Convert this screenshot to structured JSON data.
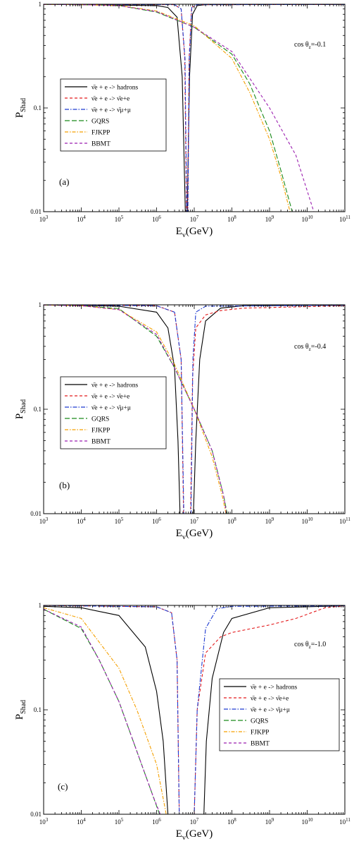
{
  "chart_data": [
    {
      "type": "line",
      "panel_label": "(a)",
      "annotation": "cos θz=-0.1",
      "xlabel": "Eν(GeV)",
      "ylabel": "PShad",
      "x_scale": "log",
      "y_scale": "log",
      "xlim": [
        1000,
        100000000000
      ],
      "ylim": [
        0.01,
        1
      ],
      "x_tick_labels": [
        "10^3",
        "10^4",
        "10^5",
        "10^6",
        "10^7",
        "10^8",
        "10^9",
        "10^10",
        "10^11"
      ],
      "y_tick_labels": [
        "0.01",
        "0.1",
        "1"
      ],
      "legend_position": "center-left",
      "series": [
        {
          "name": "ν̄e + e -> hadrons",
          "color": "#000000",
          "dash": "solid",
          "points": [
            [
              1000,
              0.998
            ],
            [
              1000000,
              0.97
            ],
            [
              2000000,
              0.93
            ],
            [
              3500000,
              0.75
            ],
            [
              4800000,
              0.2
            ],
            [
              5800000,
              0.01
            ],
            [
              6500000,
              0.01
            ],
            [
              7500000,
              0.2
            ],
            [
              9000000,
              0.8
            ],
            [
              12000000,
              0.97
            ],
            [
              20000000,
              0.99
            ],
            [
              100000000000,
              0.995
            ]
          ]
        },
        {
          "name": "ν̄e + e -> ν̄e+e",
          "color": "#e41a1c",
          "dash": "4,3",
          "points": [
            [
              1000,
              0.998
            ],
            [
              3000000,
              0.99
            ],
            [
              4500000,
              0.9
            ],
            [
              5600000,
              0.3
            ],
            [
              6200000,
              0.01
            ],
            [
              6700000,
              0.01
            ],
            [
              7300000,
              0.3
            ],
            [
              8500000,
              0.93
            ],
            [
              12000000,
              0.99
            ],
            [
              100000000000,
              0.995
            ]
          ]
        },
        {
          "name": "ν̄e + e -> ν̄μ+μ",
          "color": "#1f3bd1",
          "dash": "6,2,1.5,2",
          "points": [
            [
              1000,
              0.998
            ],
            [
              3000000,
              0.99
            ],
            [
              4500000,
              0.9
            ],
            [
              5700000,
              0.3
            ],
            [
              6300000,
              0.01
            ],
            [
              6800000,
              0.01
            ],
            [
              7400000,
              0.3
            ],
            [
              8600000,
              0.93
            ],
            [
              12000000,
              0.99
            ],
            [
              100000000000,
              0.995
            ]
          ]
        },
        {
          "name": "GQRS",
          "color": "#1a8a1a",
          "dash": "7,3",
          "points": [
            [
              1000,
              0.995
            ],
            [
              10000,
              0.99
            ],
            [
              100000,
              0.97
            ],
            [
              1000000,
              0.84
            ],
            [
              10000000,
              0.6
            ],
            [
              100000000,
              0.33
            ],
            [
              300000000,
              0.17
            ],
            [
              1000000000,
              0.06
            ],
            [
              2000000000,
              0.025
            ],
            [
              4000000000,
              0.01
            ]
          ]
        },
        {
          "name": "FJKPP",
          "color": "#f5a000",
          "dash": "5,2,1.5,2",
          "points": [
            [
              1000,
              0.995
            ],
            [
              10000,
              0.99
            ],
            [
              100000,
              0.97
            ],
            [
              1000000,
              0.86
            ],
            [
              10000000,
              0.62
            ],
            [
              100000000,
              0.3
            ],
            [
              300000000,
              0.14
            ],
            [
              1000000000,
              0.05
            ],
            [
              2000000000,
              0.022
            ],
            [
              3500000000,
              0.01
            ]
          ]
        },
        {
          "name": "BBMT",
          "color": "#9b1fb0",
          "dash": "4,3",
          "points": [
            [
              1000,
              0.995
            ],
            [
              10000,
              0.99
            ],
            [
              100000,
              0.97
            ],
            [
              1000000,
              0.85
            ],
            [
              10000000,
              0.6
            ],
            [
              100000000,
              0.35
            ],
            [
              1000000000,
              0.1
            ],
            [
              5000000000,
              0.035
            ],
            [
              15000000000,
              0.01
            ]
          ]
        }
      ]
    },
    {
      "type": "line",
      "panel_label": "(b)",
      "annotation": "cos θz=-0.4",
      "xlabel": "Eν(GeV)",
      "ylabel": "PShad",
      "x_scale": "log",
      "y_scale": "log",
      "xlim": [
        1000,
        100000000000
      ],
      "ylim": [
        0.01,
        1
      ],
      "x_tick_labels": [
        "10^3",
        "10^4",
        "10^5",
        "10^6",
        "10^7",
        "10^8",
        "10^9",
        "10^10",
        "10^11"
      ],
      "y_tick_labels": [
        "0.01",
        "0.1",
        "1"
      ],
      "legend_position": "lower-left",
      "series": [
        {
          "name": "ν̄e + e -> hadrons",
          "color": "#000000",
          "dash": "solid",
          "points": [
            [
              1000,
              0.998
            ],
            [
              100000,
              0.97
            ],
            [
              1000000,
              0.85
            ],
            [
              2000000,
              0.6
            ],
            [
              3000000,
              0.25
            ],
            [
              3700000,
              0.05
            ],
            [
              4200000,
              0.01
            ],
            [
              9500000,
              0.01
            ],
            [
              11000000,
              0.05
            ],
            [
              14000000,
              0.3
            ],
            [
              20000000,
              0.7
            ],
            [
              50000000,
              0.93
            ],
            [
              200000000,
              0.98
            ],
            [
              100000000000,
              0.99
            ]
          ]
        },
        {
          "name": "ν̄e + e -> ν̄e+e",
          "color": "#e41a1c",
          "dash": "4,3",
          "points": [
            [
              1000,
              0.998
            ],
            [
              1000000,
              0.98
            ],
            [
              3000000,
              0.85
            ],
            [
              4500000,
              0.3
            ],
            [
              5200000,
              0.01
            ],
            [
              8000000,
              0.01
            ],
            [
              9000000,
              0.2
            ],
            [
              11000000,
              0.6
            ],
            [
              20000000,
              0.8
            ],
            [
              50000000,
              0.88
            ],
            [
              200000000,
              0.93
            ],
            [
              100000000000,
              0.98
            ]
          ]
        },
        {
          "name": "ν̄e + e -> ν̄μ+μ",
          "color": "#1f3bd1",
          "dash": "6,2,1.5,2",
          "points": [
            [
              1000,
              0.998
            ],
            [
              1000000,
              0.98
            ],
            [
              3000000,
              0.85
            ],
            [
              4500000,
              0.3
            ],
            [
              5300000,
              0.01
            ],
            [
              8200000,
              0.01
            ],
            [
              9200000,
              0.3
            ],
            [
              11000000,
              0.85
            ],
            [
              20000000,
              0.97
            ],
            [
              100000000000,
              0.99
            ]
          ]
        },
        {
          "name": "GQRS",
          "color": "#1a8a1a",
          "dash": "7,3",
          "points": [
            [
              1000,
              0.995
            ],
            [
              10000,
              0.98
            ],
            [
              100000,
              0.92
            ],
            [
              1000000,
              0.5
            ],
            [
              3000000,
              0.25
            ],
            [
              10000000,
              0.1
            ],
            [
              30000000,
              0.04
            ],
            [
              60000000,
              0.015
            ],
            [
              75000000,
              0.01
            ]
          ]
        },
        {
          "name": "FJKPP",
          "color": "#f5a000",
          "dash": "5,2,1.5,2",
          "points": [
            [
              1000,
              0.995
            ],
            [
              10000,
              0.98
            ],
            [
              100000,
              0.9
            ],
            [
              1000000,
              0.55
            ],
            [
              3000000,
              0.27
            ],
            [
              10000000,
              0.1
            ],
            [
              30000000,
              0.035
            ],
            [
              55000000,
              0.015
            ],
            [
              70000000,
              0.01
            ]
          ]
        },
        {
          "name": "BBMT",
          "color": "#9b1fb0",
          "dash": "4,3",
          "points": [
            [
              1000,
              0.995
            ],
            [
              10000,
              0.98
            ],
            [
              100000,
              0.9
            ],
            [
              1000000,
              0.52
            ],
            [
              3000000,
              0.25
            ],
            [
              10000000,
              0.1
            ],
            [
              30000000,
              0.04
            ],
            [
              60000000,
              0.015
            ],
            [
              72000000,
              0.01
            ]
          ]
        }
      ]
    },
    {
      "type": "line",
      "panel_label": "(c)",
      "annotation": "cos θz=-1.0",
      "xlabel": "Eν(GeV)",
      "ylabel": "PShad",
      "x_scale": "log",
      "y_scale": "log",
      "xlim": [
        1000,
        100000000000
      ],
      "ylim": [
        0.01,
        1
      ],
      "x_tick_labels": [
        "10^3",
        "10^4",
        "10^5",
        "10^6",
        "10^7",
        "10^8",
        "10^9",
        "10^10",
        "10^11"
      ],
      "y_tick_labels": [
        "0.01",
        "0.1",
        "1"
      ],
      "legend_position": "center-right",
      "series": [
        {
          "name": "ν̄e + e -> hadrons",
          "color": "#000000",
          "dash": "solid",
          "points": [
            [
              1000,
              0.98
            ],
            [
              10000,
              0.95
            ],
            [
              100000,
              0.8
            ],
            [
              500000,
              0.4
            ],
            [
              1000000,
              0.15
            ],
            [
              1500000,
              0.05
            ],
            [
              2000000,
              0.01
            ],
            [
              18000000,
              0.01
            ],
            [
              21000000,
              0.05
            ],
            [
              30000000,
              0.2
            ],
            [
              60000000,
              0.55
            ],
            [
              100000000,
              0.75
            ],
            [
              1000000000,
              0.95
            ],
            [
              100000000000,
              0.99
            ]
          ]
        },
        {
          "name": "ν̄e + e -> ν̄e+e",
          "color": "#e41a1c",
          "dash": "4,3",
          "points": [
            [
              1000,
              0.998
            ],
            [
              1000000,
              0.97
            ],
            [
              2500000,
              0.85
            ],
            [
              3500000,
              0.3
            ],
            [
              4000000,
              0.01
            ],
            [
              10000000,
              0.01
            ],
            [
              12000000,
              0.1
            ],
            [
              20000000,
              0.35
            ],
            [
              50000000,
              0.5
            ],
            [
              100000000,
              0.55
            ],
            [
              1000000000,
              0.65
            ],
            [
              5000000000,
              0.75
            ],
            [
              30000000000,
              0.95
            ],
            [
              100000000000,
              0.99
            ]
          ]
        },
        {
          "name": "ν̄e + e -> ν̄μ+μ",
          "color": "#1f3bd1",
          "dash": "6,2,1.5,2",
          "points": [
            [
              1000,
              0.998
            ],
            [
              1000000,
              0.97
            ],
            [
              2500000,
              0.85
            ],
            [
              3500000,
              0.3
            ],
            [
              4000000,
              0.01
            ],
            [
              10000000,
              0.01
            ],
            [
              12000000,
              0.1
            ],
            [
              20000000,
              0.6
            ],
            [
              40000000,
              0.93
            ],
            [
              100000000,
              0.98
            ],
            [
              100000000000,
              0.99
            ]
          ]
        },
        {
          "name": "GQRS",
          "color": "#1a8a1a",
          "dash": "7,3",
          "points": [
            [
              1000,
              0.92
            ],
            [
              10000,
              0.6
            ],
            [
              30000,
              0.3
            ],
            [
              100000,
              0.12
            ],
            [
              300000,
              0.04
            ],
            [
              800000,
              0.015
            ],
            [
              1200000,
              0.01
            ]
          ]
        },
        {
          "name": "FJKPP",
          "color": "#f5a000",
          "dash": "5,2,1.5,2",
          "points": [
            [
              1000,
              0.95
            ],
            [
              10000,
              0.75
            ],
            [
              100000,
              0.25
            ],
            [
              300000,
              0.1
            ],
            [
              1000000,
              0.03
            ],
            [
              1800000,
              0.01
            ]
          ]
        },
        {
          "name": "BBMT",
          "color": "#9b1fb0",
          "dash": "4,3",
          "points": [
            [
              1000,
              0.92
            ],
            [
              10000,
              0.62
            ],
            [
              30000,
              0.3
            ],
            [
              100000,
              0.12
            ],
            [
              300000,
              0.04
            ],
            [
              800000,
              0.015
            ],
            [
              1250000,
              0.01
            ]
          ]
        }
      ]
    }
  ]
}
